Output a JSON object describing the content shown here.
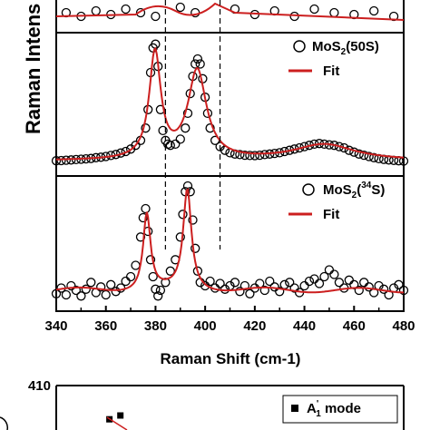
{
  "chart_data": [
    {
      "type": "scatter",
      "panel": "top",
      "xlabel": "Raman Shift (cm-1)",
      "ylabel": "Raman Intens",
      "xlim": [
        340,
        480
      ],
      "x_ticks": [
        "340",
        "360",
        "380",
        "400",
        "420",
        "440",
        "460",
        "480"
      ],
      "reference_lines_x": [
        384,
        406
      ],
      "legend_placement": "top-right",
      "series": [
        {
          "name": "MoS2(50S)",
          "legend_main": "MoS",
          "legend_sub": "2",
          "legend_tail": "(50S)",
          "style": "open-circle",
          "points": [
            [
              340,
              0.035
            ],
            [
              342,
              0.037
            ],
            [
              344,
              0.04
            ],
            [
              346,
              0.042
            ],
            [
              348,
              0.045
            ],
            [
              350,
              0.048
            ],
            [
              352,
              0.051
            ],
            [
              354,
              0.054
            ],
            [
              356,
              0.06
            ],
            [
              358,
              0.064
            ],
            [
              360,
              0.07
            ],
            [
              362,
              0.078
            ],
            [
              364,
              0.086
            ],
            [
              366,
              0.098
            ],
            [
              368,
              0.11
            ],
            [
              370,
              0.13
            ],
            [
              372,
              0.16
            ],
            [
              374,
              0.2
            ],
            [
              376,
              0.3
            ],
            [
              377,
              0.45
            ],
            [
              378,
              0.75
            ],
            [
              379,
              0.95
            ],
            [
              380,
              0.98
            ],
            [
              381,
              0.8
            ],
            [
              382,
              0.45
            ],
            [
              383,
              0.28
            ],
            [
              384,
              0.2
            ],
            [
              385,
              0.17
            ],
            [
              386,
              0.16
            ],
            [
              388,
              0.17
            ],
            [
              390,
              0.21
            ],
            [
              392,
              0.3
            ],
            [
              393,
              0.42
            ],
            [
              394,
              0.58
            ],
            [
              395,
              0.72
            ],
            [
              396,
              0.82
            ],
            [
              397,
              0.86
            ],
            [
              398,
              0.82
            ],
            [
              399,
              0.7
            ],
            [
              400,
              0.55
            ],
            [
              401,
              0.42
            ],
            [
              402,
              0.3
            ],
            [
              404,
              0.2
            ],
            [
              406,
              0.15
            ],
            [
              408,
              0.12
            ],
            [
              410,
              0.1
            ],
            [
              412,
              0.09
            ],
            [
              414,
              0.085
            ],
            [
              416,
              0.08
            ],
            [
              418,
              0.078
            ],
            [
              420,
              0.077
            ],
            [
              422,
              0.08
            ],
            [
              424,
              0.085
            ],
            [
              426,
              0.09
            ],
            [
              428,
              0.095
            ],
            [
              430,
              0.1
            ],
            [
              432,
              0.11
            ],
            [
              434,
              0.12
            ],
            [
              436,
              0.13
            ],
            [
              438,
              0.14
            ],
            [
              440,
              0.15
            ],
            [
              442,
              0.16
            ],
            [
              444,
              0.17
            ],
            [
              446,
              0.175
            ],
            [
              448,
              0.17
            ],
            [
              450,
              0.165
            ],
            [
              452,
              0.16
            ],
            [
              454,
              0.15
            ],
            [
              456,
              0.14
            ],
            [
              458,
              0.12
            ],
            [
              460,
              0.105
            ],
            [
              462,
              0.09
            ],
            [
              464,
              0.08
            ],
            [
              466,
              0.07
            ],
            [
              468,
              0.06
            ],
            [
              470,
              0.052
            ],
            [
              472,
              0.046
            ],
            [
              474,
              0.042
            ],
            [
              476,
              0.038
            ],
            [
              478,
              0.035
            ],
            [
              480,
              0.033
            ]
          ]
        },
        {
          "name": "Fit",
          "style": "red-line",
          "color": "#cc1f1f",
          "peaks": [
            {
              "center": 379.8,
              "height": 0.86,
              "width": 2.8
            },
            {
              "center": 396.8,
              "height": 0.72,
              "width": 4.5
            },
            {
              "center": 448,
              "height": 0.13,
              "width": 15
            }
          ],
          "baseline": 0.035
        }
      ]
    },
    {
      "type": "scatter",
      "panel": "bottom",
      "xlim": [
        340,
        480
      ],
      "legend_placement": "top-right",
      "series": [
        {
          "name": "MoS2(34S)",
          "legend_main": "MoS",
          "legend_sub": "2",
          "legend_open": "(",
          "legend_sup": "34",
          "legend_tail": "S)",
          "style": "open-circle",
          "points": [
            [
              340,
              0.05
            ],
            [
              342,
              0.1
            ],
            [
              344,
              0.04
            ],
            [
              346,
              0.12
            ],
            [
              348,
              0.08
            ],
            [
              350,
              0.03
            ],
            [
              352,
              0.09
            ],
            [
              354,
              0.15
            ],
            [
              356,
              0.06
            ],
            [
              358,
              0.11
            ],
            [
              360,
              0.04
            ],
            [
              362,
              0.13
            ],
            [
              364,
              0.07
            ],
            [
              366,
              0.1
            ],
            [
              368,
              0.16
            ],
            [
              370,
              0.2
            ],
            [
              372,
              0.3
            ],
            [
              374,
              0.55
            ],
            [
              375,
              0.72
            ],
            [
              376,
              0.8
            ],
            [
              377,
              0.6
            ],
            [
              378,
              0.35
            ],
            [
              379,
              0.2
            ],
            [
              380,
              0.09
            ],
            [
              381,
              0.03
            ],
            [
              382,
              0.08
            ],
            [
              384,
              0.15
            ],
            [
              386,
              0.25
            ],
            [
              388,
              0.35
            ],
            [
              390,
              0.55
            ],
            [
              391,
              0.75
            ],
            [
              392,
              0.95
            ],
            [
              393,
              1.0
            ],
            [
              394,
              0.95
            ],
            [
              395,
              0.7
            ],
            [
              396,
              0.45
            ],
            [
              397,
              0.25
            ],
            [
              398,
              0.15
            ],
            [
              400,
              0.12
            ],
            [
              402,
              0.16
            ],
            [
              404,
              0.1
            ],
            [
              406,
              0.14
            ],
            [
              408,
              0.09
            ],
            [
              410,
              0.12
            ],
            [
              412,
              0.15
            ],
            [
              414,
              0.07
            ],
            [
              416,
              0.12
            ],
            [
              418,
              0.05
            ],
            [
              420,
              0.1
            ],
            [
              422,
              0.14
            ],
            [
              424,
              0.08
            ],
            [
              426,
              0.16
            ],
            [
              428,
              0.11
            ],
            [
              430,
              0.07
            ],
            [
              432,
              0.13
            ],
            [
              434,
              0.15
            ],
            [
              436,
              0.1
            ],
            [
              438,
              0.06
            ],
            [
              440,
              0.12
            ],
            [
              442,
              0.16
            ],
            [
              444,
              0.18
            ],
            [
              446,
              0.14
            ],
            [
              448,
              0.2
            ],
            [
              450,
              0.26
            ],
            [
              452,
              0.22
            ],
            [
              454,
              0.15
            ],
            [
              456,
              0.1
            ],
            [
              458,
              0.17
            ],
            [
              460,
              0.13
            ],
            [
              462,
              0.08
            ],
            [
              464,
              0.15
            ],
            [
              466,
              0.11
            ],
            [
              468,
              0.06
            ],
            [
              470,
              0.12
            ],
            [
              472,
              0.09
            ],
            [
              474,
              0.04
            ],
            [
              476,
              0.1
            ],
            [
              478,
              0.13
            ],
            [
              480,
              0.08
            ]
          ]
        },
        {
          "name": "Fit",
          "style": "red-line",
          "color": "#cc1f1f",
          "peaks": [
            {
              "center": 376.5,
              "height": 0.68,
              "width": 1.8
            },
            {
              "center": 392.8,
              "height": 0.88,
              "width": 2.0
            }
          ],
          "baseline": 0.08,
          "ripple": 0.02
        }
      ]
    },
    {
      "type": "scatter",
      "panel": "lower-chart",
      "ylim_top_tick": "410",
      "legend_placement": "top-right",
      "series": [
        {
          "name": "A1' mode",
          "legend_main": "A",
          "legend_sub": "1",
          "legend_prime": "'",
          "legend_tail": " mode",
          "style": "filled-square",
          "points": [
            [
              0.05,
              0.62
            ],
            [
              0.12,
              0.55
            ]
          ]
        }
      ]
    }
  ]
}
